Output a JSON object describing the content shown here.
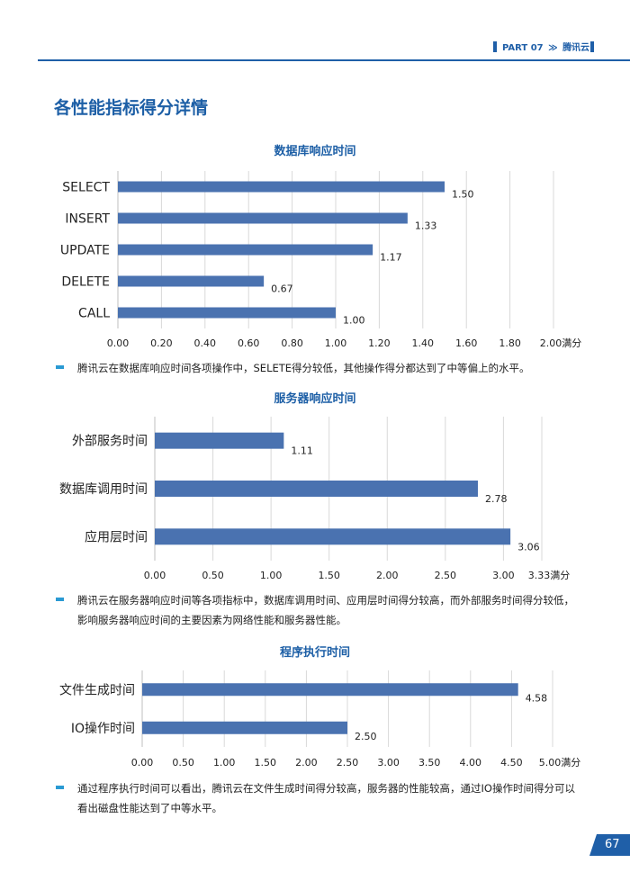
{
  "header": {
    "part": "PART 07",
    "chevron": "≫",
    "brand": "腾讯云"
  },
  "page_title": "各性能指标得分详情",
  "page_number": "67",
  "charts": [
    {
      "title": "数据库响应时间"
    },
    {
      "title": "服务器响应时间"
    },
    {
      "title": "程序执行时间"
    }
  ],
  "notes": [
    "腾讯云在数据库响应时间各项操作中，SELETE得分较低，其他操作得分都达到了中等偏上的水平。",
    "腾讯云在服务器响应时间等各项指标中，数据库调用时间、应用层时间得分较高，而外部服务时间得分较低，影响服务器响应时间的主要因素为网络性能和服务器性能。",
    "通过程序执行时间可以看出，腾讯云在文件生成时间得分较高，服务器的性能较高，通过IO操作时间得分可以看出磁盘性能达到了中等水平。"
  ],
  "colors": {
    "bar": "#4a72b0",
    "accent": "#1f5fa8",
    "bullet": "#2a9ad3"
  },
  "chart_data": [
    {
      "type": "bar",
      "orientation": "horizontal",
      "title": "数据库响应时间",
      "categories": [
        "SELECT",
        "INSERT",
        "UPDATE",
        "DELETE",
        "CALL"
      ],
      "values": [
        1.5,
        1.33,
        1.17,
        0.67,
        1.0
      ],
      "value_labels": [
        "1.50",
        "1.33",
        "1.17",
        "0.67",
        "1.00"
      ],
      "xlim": [
        0,
        2.0
      ],
      "x_ticks": [
        "0.00",
        "0.20",
        "0.40",
        "0.60",
        "0.80",
        "1.00",
        "1.20",
        "1.40",
        "1.60",
        "1.80",
        "2.00满分"
      ],
      "grid": true
    },
    {
      "type": "bar",
      "orientation": "horizontal",
      "title": "服务器响应时间",
      "categories": [
        "外部服务时间",
        "数据库调用时间",
        "应用层时间"
      ],
      "values": [
        1.11,
        2.78,
        3.06
      ],
      "value_labels": [
        "1.11",
        "2.78",
        "3.06"
      ],
      "xlim": [
        0,
        3.33
      ],
      "x_ticks": [
        "0.00",
        "0.50",
        "1.00",
        "1.50",
        "2.00",
        "2.50",
        "3.00",
        "3.33满分"
      ],
      "x_tick_values": [
        0,
        0.5,
        1.0,
        1.5,
        2.0,
        2.5,
        3.0,
        3.33
      ],
      "grid": true
    },
    {
      "type": "bar",
      "orientation": "horizontal",
      "title": "程序执行时间",
      "categories": [
        "文件生成时间",
        "IO操作时间"
      ],
      "values": [
        4.58,
        2.5
      ],
      "value_labels": [
        "4.58",
        "2.50"
      ],
      "xlim": [
        0,
        5.0
      ],
      "x_ticks": [
        "0.00",
        "0.50",
        "1.00",
        "1.50",
        "2.00",
        "2.50",
        "3.00",
        "3.50",
        "4.00",
        "4.50",
        "5.00满分"
      ],
      "grid": true
    }
  ]
}
